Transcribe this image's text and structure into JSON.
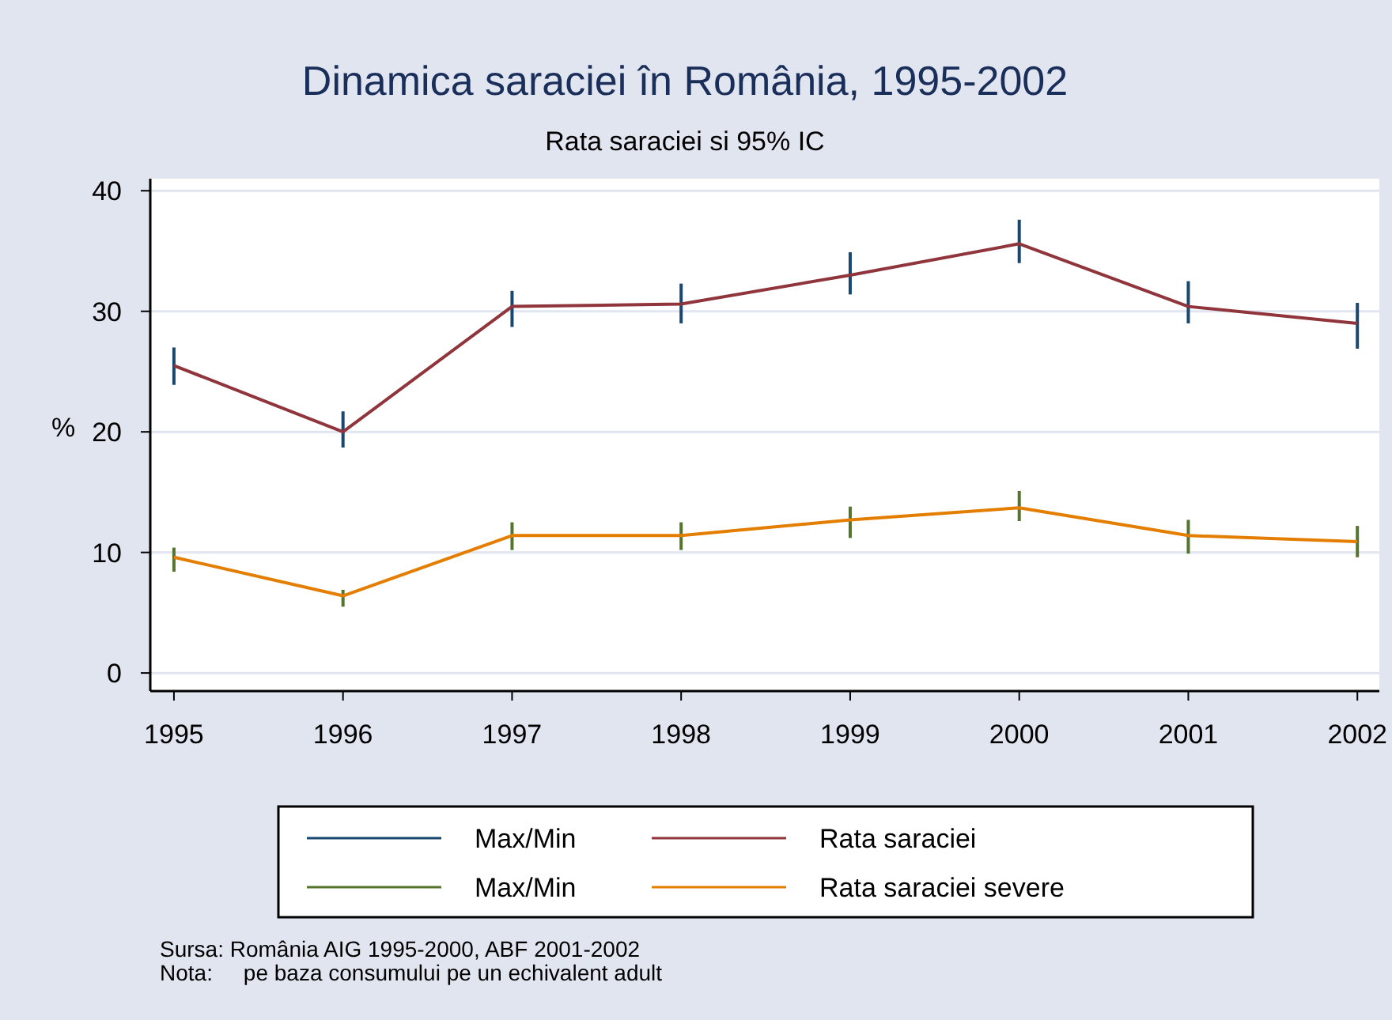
{
  "chart_data": {
    "type": "line",
    "title": "Dinamica saraciei în România, 1995-2002",
    "subtitle": "Rata saraciei si 95% IC",
    "ylabel": "%",
    "x": [
      1995,
      1996,
      1997,
      1998,
      1999,
      2000,
      2001,
      2002
    ],
    "xlim": [
      1994.86,
      2002.13
    ],
    "xticks": [
      1995,
      1996,
      1997,
      1998,
      1999,
      2000,
      2001,
      2002
    ],
    "ylim": [
      -1.5,
      41
    ],
    "yticks": [
      0,
      10,
      20,
      30,
      40
    ],
    "grid": "y",
    "legend": "bottom",
    "marker": "none",
    "line_style": "solid",
    "series": [
      {
        "name": "Max/Min",
        "type": "bar",
        "color": "#1a476f",
        "base": [
          23.9,
          18.7,
          28.7,
          29.0,
          31.4,
          34.0,
          29.0,
          26.9
        ],
        "values": [
          3.1,
          3.0,
          3.0,
          3.3,
          3.5,
          3.6,
          3.5,
          3.8
        ]
      },
      {
        "name": "Rata saraciei",
        "color": "#90353b",
        "values": [
          25.5,
          20.0,
          30.4,
          30.6,
          33.0,
          35.6,
          30.4,
          29.0
        ]
      },
      {
        "name": "Max/Min",
        "type": "bar",
        "color": "#55752f",
        "base": [
          8.4,
          5.5,
          10.2,
          10.2,
          11.2,
          12.6,
          9.9,
          9.6
        ],
        "values": [
          2.0,
          1.4,
          2.3,
          2.3,
          2.6,
          2.5,
          2.8,
          2.6
        ]
      },
      {
        "name": "Rata saraciei severe",
        "color": "#e37e00",
        "values": [
          9.6,
          6.4,
          11.4,
          11.4,
          12.7,
          13.7,
          11.4,
          10.9
        ]
      }
    ],
    "annotations": [
      "Sursa: România AIG 1995-2000, ABF 2001-2002",
      "Nota:     pe baza consumului pe un echivalent adult"
    ]
  }
}
